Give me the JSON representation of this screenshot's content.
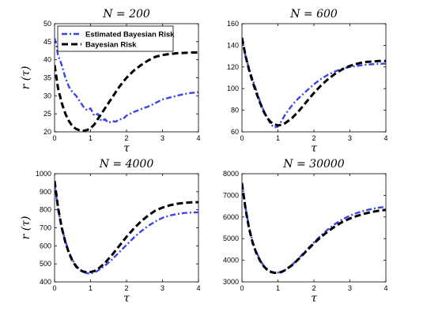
{
  "colors": {
    "estimated": "#3b44e6",
    "bayes": "#000000",
    "axes": "#000000"
  },
  "chart_data": [
    {
      "type": "line",
      "title": "N = 200",
      "xlabel": "τ",
      "ylabel": "r (τ)",
      "xlim": [
        0,
        4
      ],
      "ylim": [
        20,
        50
      ],
      "xticks": [
        0,
        1,
        2,
        3,
        4
      ],
      "yticks": [
        20,
        25,
        30,
        35,
        40,
        45,
        50
      ],
      "grid": false,
      "legend": {
        "placement": "top-left",
        "entries": [
          "Estimated Bayesian Risk",
          "Bayesian Risk"
        ]
      },
      "series": [
        {
          "name": "Estimated Bayesian Risk",
          "style": "dash-dot",
          "x": [
            0,
            0.05,
            0.1,
            0.15,
            0.2,
            0.3,
            0.4,
            0.5,
            0.6,
            0.7,
            0.8,
            0.9,
            1.0,
            1.1,
            1.2,
            1.3,
            1.4,
            1.5,
            1.6,
            1.7,
            1.8,
            1.9,
            2.0,
            2.2,
            2.4,
            2.6,
            2.8,
            3.0,
            3.2,
            3.4,
            3.6,
            3.8,
            4.0
          ],
          "y": [
            46,
            44,
            41,
            40,
            38.5,
            35,
            32.5,
            31,
            30,
            28.5,
            27,
            26,
            26.5,
            24.5,
            25,
            23,
            23.5,
            22.5,
            23,
            22.8,
            23.5,
            23.5,
            24.5,
            25.5,
            26.3,
            27,
            28,
            29,
            29.5,
            30,
            30.5,
            30.8,
            31
          ]
        },
        {
          "name": "Bayesian Risk",
          "style": "dash",
          "x": [
            0,
            0.1,
            0.2,
            0.3,
            0.4,
            0.5,
            0.6,
            0.7,
            0.8,
            0.9,
            1.0,
            1.1,
            1.2,
            1.4,
            1.6,
            1.8,
            2.0,
            2.2,
            2.4,
            2.6,
            2.8,
            3.0,
            3.2,
            3.4,
            3.6,
            3.8,
            4.0
          ],
          "y": [
            38.5,
            32,
            28,
            25,
            23,
            21.5,
            20.8,
            20.4,
            20.3,
            20.5,
            21,
            22,
            23.5,
            26.5,
            29.5,
            32.5,
            35,
            37,
            38.5,
            39.8,
            40.8,
            41.3,
            41.6,
            41.8,
            41.9,
            42,
            42
          ]
        }
      ]
    },
    {
      "type": "line",
      "title": "N = 600",
      "xlabel": "τ",
      "ylabel": "",
      "xlim": [
        0,
        4
      ],
      "ylim": [
        60,
        160
      ],
      "xticks": [
        0,
        1,
        2,
        3,
        4
      ],
      "yticks": [
        60,
        80,
        100,
        120,
        140,
        160
      ],
      "grid": false,
      "series": [
        {
          "name": "Estimated Bayesian Risk",
          "style": "dash-dot",
          "x": [
            0,
            0.1,
            0.2,
            0.3,
            0.4,
            0.5,
            0.6,
            0.7,
            0.8,
            0.9,
            1.0,
            1.1,
            1.2,
            1.4,
            1.6,
            1.8,
            2.0,
            2.2,
            2.4,
            2.6,
            2.8,
            3.0,
            3.2,
            3.4,
            3.6,
            3.8,
            4.0
          ],
          "y": [
            145,
            130,
            118,
            108,
            98,
            88,
            80,
            73,
            67,
            64,
            65,
            70,
            76,
            85,
            92,
            98,
            104,
            109,
            113,
            116,
            118.5,
            120,
            121,
            122,
            122.5,
            123,
            123
          ]
        },
        {
          "name": "Bayesian Risk",
          "style": "dash",
          "x": [
            0,
            0.1,
            0.2,
            0.3,
            0.4,
            0.5,
            0.6,
            0.7,
            0.8,
            0.9,
            1.0,
            1.1,
            1.2,
            1.4,
            1.6,
            1.8,
            2.0,
            2.2,
            2.4,
            2.6,
            2.8,
            3.0,
            3.2,
            3.4,
            3.6,
            3.8,
            4.0
          ],
          "y": [
            147,
            130,
            117,
            106,
            96,
            87,
            79,
            73,
            69,
            67,
            66,
            66.5,
            68,
            73,
            80,
            88,
            96,
            103,
            109,
            114,
            118,
            121,
            123,
            124.5,
            125,
            125.5,
            125.5
          ]
        }
      ]
    },
    {
      "type": "line",
      "title": "N = 4000",
      "xlabel": "τ",
      "ylabel": "r (τ)",
      "xlim": [
        0,
        4
      ],
      "ylim": [
        400,
        1000
      ],
      "xticks": [
        0,
        1,
        2,
        3,
        4
      ],
      "yticks": [
        400,
        500,
        600,
        700,
        800,
        900,
        1000
      ],
      "grid": false,
      "series": [
        {
          "name": "Estimated Bayesian Risk",
          "style": "dash-dot",
          "x": [
            0,
            0.1,
            0.2,
            0.3,
            0.4,
            0.5,
            0.6,
            0.7,
            0.8,
            0.9,
            1.0,
            1.1,
            1.2,
            1.4,
            1.6,
            1.8,
            2.0,
            2.2,
            2.4,
            2.6,
            2.8,
            3.0,
            3.2,
            3.4,
            3.6,
            3.8,
            4.0
          ],
          "y": [
            940,
            800,
            700,
            625,
            565,
            520,
            490,
            468,
            455,
            448,
            447,
            452,
            462,
            490,
            525,
            565,
            605,
            645,
            680,
            710,
            735,
            755,
            768,
            776,
            782,
            785,
            786
          ]
        },
        {
          "name": "Bayesian Risk",
          "style": "dash",
          "x": [
            0,
            0.1,
            0.2,
            0.3,
            0.4,
            0.5,
            0.6,
            0.7,
            0.8,
            0.9,
            1.0,
            1.1,
            1.2,
            1.4,
            1.6,
            1.8,
            2.0,
            2.2,
            2.4,
            2.6,
            2.8,
            3.0,
            3.2,
            3.4,
            3.6,
            3.8,
            4.0
          ],
          "y": [
            960,
            810,
            700,
            620,
            560,
            515,
            485,
            466,
            457,
            454,
            455,
            460,
            470,
            505,
            550,
            600,
            650,
            695,
            735,
            768,
            795,
            812,
            825,
            833,
            838,
            841,
            842
          ]
        }
      ]
    },
    {
      "type": "line",
      "title": "N = 30000",
      "xlabel": "τ",
      "ylabel": "",
      "xlim": [
        0,
        4
      ],
      "ylim": [
        3000,
        8000
      ],
      "xticks": [
        0,
        1,
        2,
        3,
        4
      ],
      "yticks": [
        3000,
        4000,
        5000,
        6000,
        7000,
        8000
      ],
      "grid": false,
      "series": [
        {
          "name": "Estimated Bayesian Risk",
          "style": "dash-dot",
          "x": [
            0,
            0.1,
            0.2,
            0.3,
            0.4,
            0.5,
            0.6,
            0.7,
            0.8,
            0.9,
            1.0,
            1.1,
            1.2,
            1.4,
            1.6,
            1.8,
            2.0,
            2.2,
            2.4,
            2.6,
            2.8,
            3.0,
            3.2,
            3.4,
            3.6,
            3.8,
            4.0
          ],
          "y": [
            7600,
            6400,
            5500,
            4850,
            4380,
            4020,
            3760,
            3590,
            3480,
            3430,
            3430,
            3470,
            3550,
            3800,
            4130,
            4480,
            4830,
            5150,
            5440,
            5690,
            5900,
            6060,
            6190,
            6290,
            6370,
            6430,
            6470
          ]
        },
        {
          "name": "Bayesian Risk",
          "style": "dash",
          "x": [
            0,
            0.1,
            0.2,
            0.3,
            0.4,
            0.5,
            0.6,
            0.7,
            0.8,
            0.9,
            1.0,
            1.1,
            1.2,
            1.4,
            1.6,
            1.8,
            2.0,
            2.2,
            2.4,
            2.6,
            2.8,
            3.0,
            3.2,
            3.4,
            3.6,
            3.8,
            4.0
          ],
          "y": [
            7550,
            6350,
            5450,
            4800,
            4330,
            3980,
            3730,
            3560,
            3460,
            3420,
            3420,
            3460,
            3540,
            3780,
            4100,
            4440,
            4780,
            5080,
            5350,
            5580,
            5780,
            5930,
            6050,
            6150,
            6230,
            6290,
            6330
          ]
        }
      ]
    }
  ]
}
